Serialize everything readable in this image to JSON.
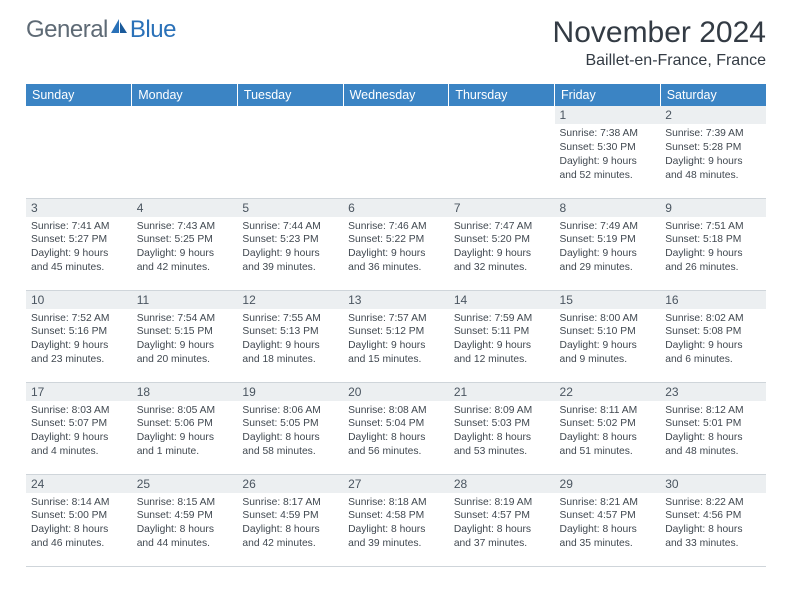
{
  "logo": {
    "part1": "General",
    "part2": "Blue"
  },
  "title": "November 2024",
  "location": "Baillet-en-France, France",
  "colors": {
    "header_bg": "#3b84c4",
    "header_text": "#ffffff",
    "daynum_bg": "#eceff1",
    "text": "#404850",
    "border": "#cfd5da",
    "logo_gray": "#5e6a75",
    "logo_blue": "#2a71b8"
  },
  "weekdays": [
    "Sunday",
    "Monday",
    "Tuesday",
    "Wednesday",
    "Thursday",
    "Friday",
    "Saturday"
  ],
  "weeks": [
    [
      null,
      null,
      null,
      null,
      null,
      {
        "n": "1",
        "sr": "7:38 AM",
        "ss": "5:30 PM",
        "dh": "9",
        "dm": "52 minutes"
      },
      {
        "n": "2",
        "sr": "7:39 AM",
        "ss": "5:28 PM",
        "dh": "9",
        "dm": "48 minutes"
      }
    ],
    [
      {
        "n": "3",
        "sr": "7:41 AM",
        "ss": "5:27 PM",
        "dh": "9",
        "dm": "45 minutes"
      },
      {
        "n": "4",
        "sr": "7:43 AM",
        "ss": "5:25 PM",
        "dh": "9",
        "dm": "42 minutes"
      },
      {
        "n": "5",
        "sr": "7:44 AM",
        "ss": "5:23 PM",
        "dh": "9",
        "dm": "39 minutes"
      },
      {
        "n": "6",
        "sr": "7:46 AM",
        "ss": "5:22 PM",
        "dh": "9",
        "dm": "36 minutes"
      },
      {
        "n": "7",
        "sr": "7:47 AM",
        "ss": "5:20 PM",
        "dh": "9",
        "dm": "32 minutes"
      },
      {
        "n": "8",
        "sr": "7:49 AM",
        "ss": "5:19 PM",
        "dh": "9",
        "dm": "29 minutes"
      },
      {
        "n": "9",
        "sr": "7:51 AM",
        "ss": "5:18 PM",
        "dh": "9",
        "dm": "26 minutes"
      }
    ],
    [
      {
        "n": "10",
        "sr": "7:52 AM",
        "ss": "5:16 PM",
        "dh": "9",
        "dm": "23 minutes"
      },
      {
        "n": "11",
        "sr": "7:54 AM",
        "ss": "5:15 PM",
        "dh": "9",
        "dm": "20 minutes"
      },
      {
        "n": "12",
        "sr": "7:55 AM",
        "ss": "5:13 PM",
        "dh": "9",
        "dm": "18 minutes"
      },
      {
        "n": "13",
        "sr": "7:57 AM",
        "ss": "5:12 PM",
        "dh": "9",
        "dm": "15 minutes"
      },
      {
        "n": "14",
        "sr": "7:59 AM",
        "ss": "5:11 PM",
        "dh": "9",
        "dm": "12 minutes"
      },
      {
        "n": "15",
        "sr": "8:00 AM",
        "ss": "5:10 PM",
        "dh": "9",
        "dm": "9 minutes"
      },
      {
        "n": "16",
        "sr": "8:02 AM",
        "ss": "5:08 PM",
        "dh": "9",
        "dm": "6 minutes"
      }
    ],
    [
      {
        "n": "17",
        "sr": "8:03 AM",
        "ss": "5:07 PM",
        "dh": "9",
        "dm": "4 minutes"
      },
      {
        "n": "18",
        "sr": "8:05 AM",
        "ss": "5:06 PM",
        "dh": "9",
        "dm": "1 minute"
      },
      {
        "n": "19",
        "sr": "8:06 AM",
        "ss": "5:05 PM",
        "dh": "8",
        "dm": "58 minutes"
      },
      {
        "n": "20",
        "sr": "8:08 AM",
        "ss": "5:04 PM",
        "dh": "8",
        "dm": "56 minutes"
      },
      {
        "n": "21",
        "sr": "8:09 AM",
        "ss": "5:03 PM",
        "dh": "8",
        "dm": "53 minutes"
      },
      {
        "n": "22",
        "sr": "8:11 AM",
        "ss": "5:02 PM",
        "dh": "8",
        "dm": "51 minutes"
      },
      {
        "n": "23",
        "sr": "8:12 AM",
        "ss": "5:01 PM",
        "dh": "8",
        "dm": "48 minutes"
      }
    ],
    [
      {
        "n": "24",
        "sr": "8:14 AM",
        "ss": "5:00 PM",
        "dh": "8",
        "dm": "46 minutes"
      },
      {
        "n": "25",
        "sr": "8:15 AM",
        "ss": "4:59 PM",
        "dh": "8",
        "dm": "44 minutes"
      },
      {
        "n": "26",
        "sr": "8:17 AM",
        "ss": "4:59 PM",
        "dh": "8",
        "dm": "42 minutes"
      },
      {
        "n": "27",
        "sr": "8:18 AM",
        "ss": "4:58 PM",
        "dh": "8",
        "dm": "39 minutes"
      },
      {
        "n": "28",
        "sr": "8:19 AM",
        "ss": "4:57 PM",
        "dh": "8",
        "dm": "37 minutes"
      },
      {
        "n": "29",
        "sr": "8:21 AM",
        "ss": "4:57 PM",
        "dh": "8",
        "dm": "35 minutes"
      },
      {
        "n": "30",
        "sr": "8:22 AM",
        "ss": "4:56 PM",
        "dh": "8",
        "dm": "33 minutes"
      }
    ]
  ],
  "labels": {
    "sunrise": "Sunrise:",
    "sunset": "Sunset:",
    "daylight": "Daylight:",
    "hours": "hours",
    "and": "and"
  }
}
